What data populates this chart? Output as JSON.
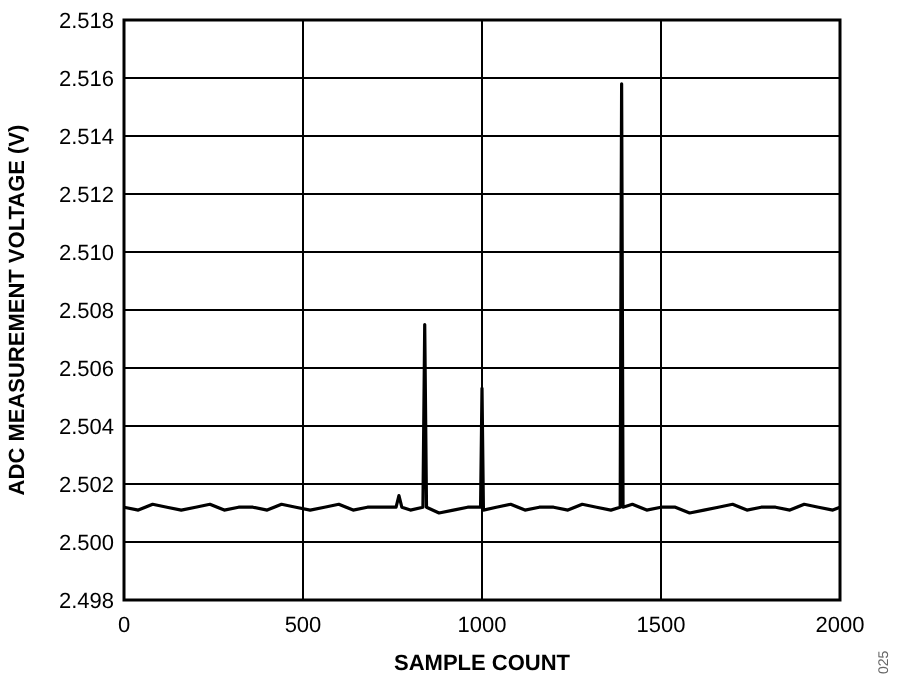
{
  "chart_data": {
    "type": "line",
    "xlabel": "SAMPLE COUNT",
    "ylabel": "ADC MEASUREMENT VOLTAGE (V)",
    "xlim": [
      0,
      2000
    ],
    "ylim": [
      2.498,
      2.518
    ],
    "xticks": [
      0,
      500,
      1000,
      1500,
      2000
    ],
    "yticks": [
      2.498,
      {
        "value": 2.5,
        "label": "2.500"
      },
      2.502,
      2.504,
      2.506,
      2.508,
      {
        "value": 2.51,
        "label": "2.510"
      },
      2.512,
      2.514,
      2.516,
      2.518
    ],
    "grid": true,
    "line_style": "solid",
    "marker": "none",
    "annotations": [
      "025"
    ],
    "series": [
      {
        "color": "#000000",
        "x": [
          0,
          40,
          80,
          120,
          160,
          200,
          240,
          280,
          320,
          360,
          400,
          440,
          480,
          520,
          560,
          600,
          640,
          680,
          720,
          760,
          768,
          776,
          800,
          835,
          840,
          845,
          880,
          920,
          960,
          996,
          1000,
          1004,
          1040,
          1080,
          1120,
          1160,
          1200,
          1240,
          1280,
          1320,
          1360,
          1386,
          1390,
          1394,
          1420,
          1460,
          1500,
          1540,
          1580,
          1620,
          1660,
          1700,
          1740,
          1780,
          1820,
          1860,
          1900,
          1940,
          1980,
          2000
        ],
        "values": [
          2.5012,
          2.5011,
          2.5013,
          2.5012,
          2.5011,
          2.5012,
          2.5013,
          2.5011,
          2.5012,
          2.5012,
          2.5011,
          2.5013,
          2.5012,
          2.5011,
          2.5012,
          2.5013,
          2.5011,
          2.5012,
          2.5012,
          2.5012,
          2.5016,
          2.5012,
          2.5011,
          2.5012,
          2.5075,
          2.5012,
          2.501,
          2.5011,
          2.5012,
          2.5012,
          2.5053,
          2.5011,
          2.5012,
          2.5013,
          2.5011,
          2.5012,
          2.5012,
          2.5011,
          2.5013,
          2.5012,
          2.5011,
          2.5012,
          2.5158,
          2.5012,
          2.5013,
          2.5011,
          2.5012,
          2.5012,
          2.501,
          2.5011,
          2.5012,
          2.5013,
          2.5011,
          2.5012,
          2.5012,
          2.5011,
          2.5013,
          2.5012,
          2.5011,
          2.5012
        ]
      }
    ]
  }
}
